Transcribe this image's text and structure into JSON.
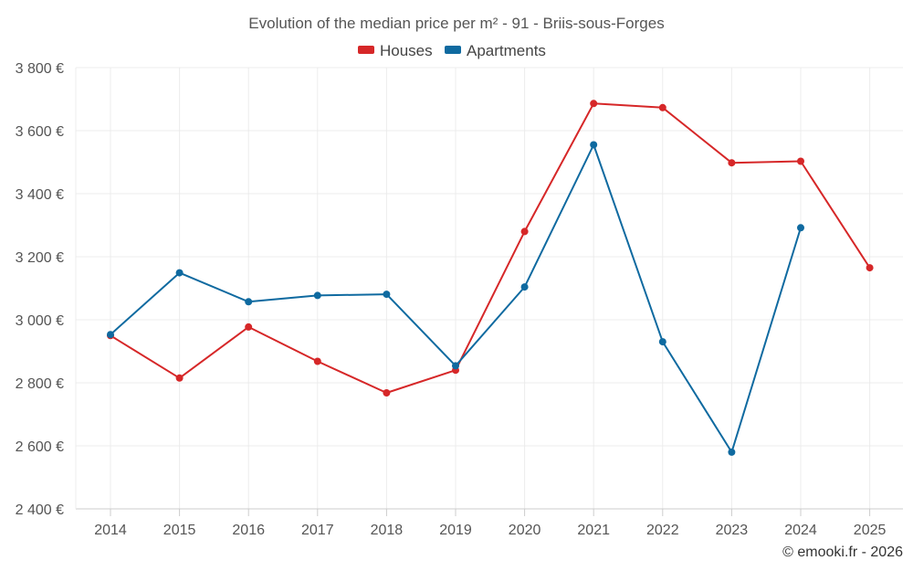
{
  "chart_data": {
    "type": "line",
    "title": "Evolution of the median price per m² - 91 - Briis-sous-Forges",
    "categories": [
      "2014",
      "2015",
      "2016",
      "2017",
      "2018",
      "2019",
      "2020",
      "2021",
      "2022",
      "2023",
      "2024",
      "2025"
    ],
    "ylim": [
      2400,
      3800
    ],
    "yticks": [
      2400,
      2600,
      2800,
      3000,
      3200,
      3400,
      3600,
      3800
    ],
    "ytick_labels": [
      "2 400 €",
      "2 600 €",
      "2 800 €",
      "3 000 €",
      "3 200 €",
      "3 400 €",
      "3 600 €",
      "3 800 €"
    ],
    "grid": true,
    "legend_position": "top-center",
    "series": [
      {
        "name": "Houses",
        "color": "#d62728",
        "values": [
          2950,
          2815,
          2977,
          2868,
          2768,
          2840,
          3280,
          3686,
          3673,
          3498,
          3503,
          3165
        ]
      },
      {
        "name": "Apartments",
        "color": "#0f6aa0",
        "values": [
          2953,
          3149,
          3057,
          3077,
          3081,
          2854,
          3104,
          3555,
          2930,
          2580,
          3292,
          null
        ]
      }
    ]
  },
  "credit": "© emooki.fr - 2026"
}
